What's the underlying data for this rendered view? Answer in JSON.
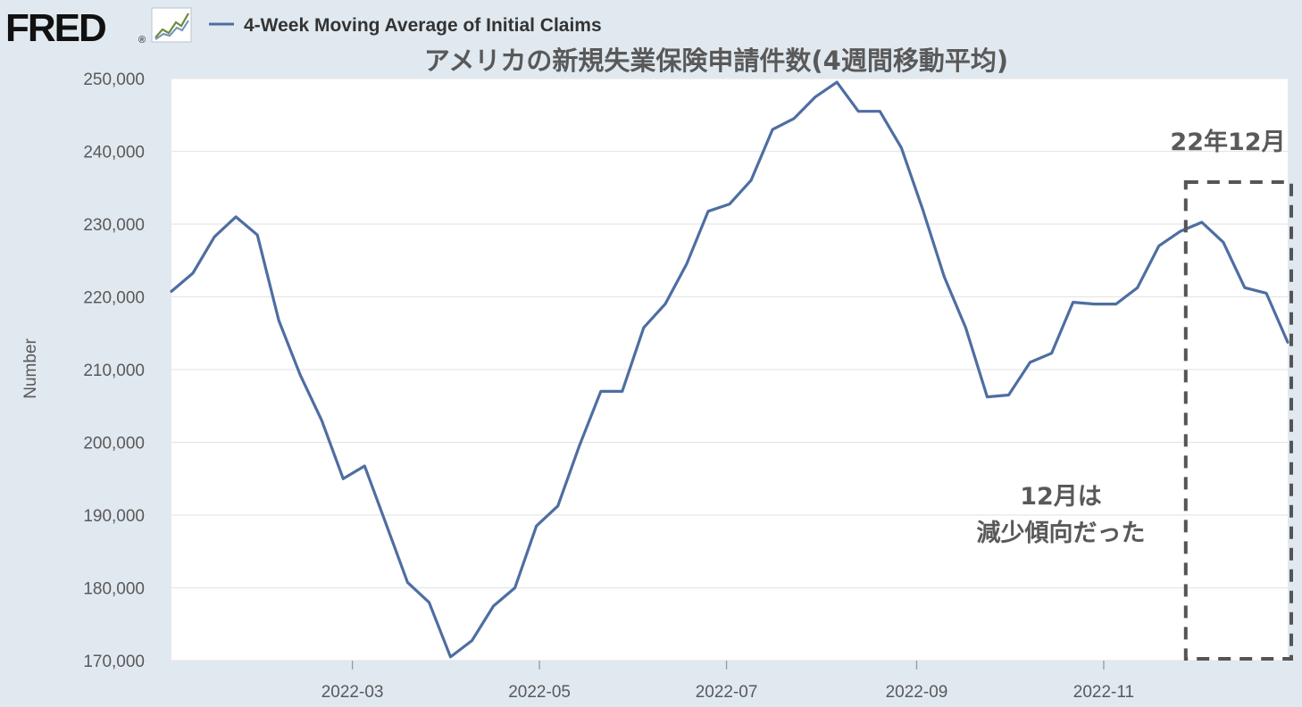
{
  "logo": {
    "text": "FRED",
    "registered": "®"
  },
  "legend": {
    "label": "4-Week Moving Average of Initial Claims"
  },
  "colors": {
    "series": "#4e6ea2",
    "background": "#e1e9f0",
    "plot": "#ffffff",
    "text": "#595959",
    "grid": "#e6e6e6",
    "highlight_box": "#555555"
  },
  "chart_data": {
    "type": "line",
    "title": "アメリカの新規失業保険申請件数(4週間移動平均)",
    "xlabel": "",
    "ylabel": "Number",
    "xlim": [
      "2022-01-01",
      "2022-12-31"
    ],
    "ylim": [
      170000,
      250000
    ],
    "grid": true,
    "legend_position": "top-left",
    "yticks": [
      170000,
      180000,
      190000,
      200000,
      210000,
      220000,
      230000,
      240000,
      250000
    ],
    "ytick_labels": [
      "170,000",
      "180,000",
      "190,000",
      "200,000",
      "210,000",
      "220,000",
      "230,000",
      "240,000",
      "250,000"
    ],
    "xticks": [
      "2022-03-01",
      "2022-05-01",
      "2022-07-01",
      "2022-09-01",
      "2022-11-01"
    ],
    "xtick_labels": [
      "2022-03",
      "2022-05",
      "2022-07",
      "2022-09",
      "2022-11"
    ],
    "series": [
      {
        "name": "4-Week Moving Average of Initial Claims",
        "points": [
          [
            "2022-01-01",
            220750
          ],
          [
            "2022-01-08",
            223250
          ],
          [
            "2022-01-15",
            228250
          ],
          [
            "2022-01-22",
            231000
          ],
          [
            "2022-01-29",
            228500
          ],
          [
            "2022-02-05",
            216750
          ],
          [
            "2022-02-12",
            209250
          ],
          [
            "2022-02-19",
            203000
          ],
          [
            "2022-02-26",
            195000
          ],
          [
            "2022-03-05",
            196750
          ],
          [
            "2022-03-12",
            188750
          ],
          [
            "2022-03-19",
            180750
          ],
          [
            "2022-03-26",
            178000
          ],
          [
            "2022-04-02",
            170500
          ],
          [
            "2022-04-09",
            172750
          ],
          [
            "2022-04-16",
            177500
          ],
          [
            "2022-04-23",
            180000
          ],
          [
            "2022-04-30",
            188500
          ],
          [
            "2022-05-07",
            191250
          ],
          [
            "2022-05-14",
            199500
          ],
          [
            "2022-05-21",
            207000
          ],
          [
            "2022-05-28",
            207000
          ],
          [
            "2022-06-04",
            215750
          ],
          [
            "2022-06-11",
            219000
          ],
          [
            "2022-06-18",
            224500
          ],
          [
            "2022-06-25",
            231750
          ],
          [
            "2022-07-02",
            232750
          ],
          [
            "2022-07-09",
            236000
          ],
          [
            "2022-07-16",
            243000
          ],
          [
            "2022-07-23",
            244500
          ],
          [
            "2022-07-30",
            247500
          ],
          [
            "2022-08-06",
            249500
          ],
          [
            "2022-08-13",
            245500
          ],
          [
            "2022-08-20",
            245500
          ],
          [
            "2022-08-27",
            240500
          ],
          [
            "2022-09-03",
            232000
          ],
          [
            "2022-09-10",
            222750
          ],
          [
            "2022-09-17",
            215750
          ],
          [
            "2022-09-24",
            206250
          ],
          [
            "2022-10-01",
            206500
          ],
          [
            "2022-10-08",
            211000
          ],
          [
            "2022-10-15",
            212250
          ],
          [
            "2022-10-22",
            219250
          ],
          [
            "2022-10-29",
            219000
          ],
          [
            "2022-11-05",
            219000
          ],
          [
            "2022-11-12",
            221250
          ],
          [
            "2022-11-19",
            227000
          ],
          [
            "2022-11-26",
            229000
          ],
          [
            "2022-12-03",
            230250
          ],
          [
            "2022-12-10",
            227500
          ],
          [
            "2022-12-17",
            221250
          ],
          [
            "2022-12-24",
            220500
          ],
          [
            "2022-12-31",
            213750
          ]
        ]
      }
    ],
    "annotations": {
      "box_label": "22年12月",
      "note_line1": "12月は",
      "note_line2": "減少傾向だった",
      "box_range": [
        "2022-11-26",
        "2022-12-31"
      ]
    }
  }
}
